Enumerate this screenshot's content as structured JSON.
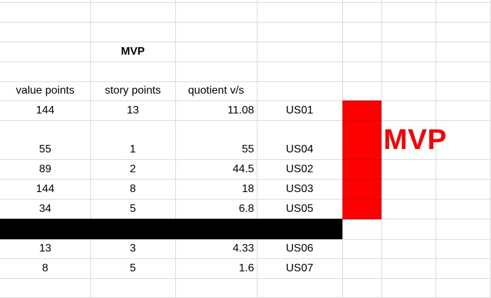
{
  "sheet": {
    "title_cell": "MVP",
    "headers": {
      "value": "value points",
      "story": "story points",
      "quotient": "quotient v/s"
    },
    "rows_top": [
      {
        "value": "144",
        "story": "13",
        "quotient": "11.08",
        "id": "US01"
      },
      {
        "value": "55",
        "story": "1",
        "quotient": "55",
        "id": "US04"
      },
      {
        "value": "89",
        "story": "2",
        "quotient": "44.5",
        "id": "US02"
      },
      {
        "value": "144",
        "story": "8",
        "quotient": "18",
        "id": "US03"
      },
      {
        "value": "34",
        "story": "5",
        "quotient": "6.8",
        "id": "US05"
      }
    ],
    "rows_bottom": [
      {
        "value": "13",
        "story": "3",
        "quotient": "4.33",
        "id": "US06"
      },
      {
        "value": "8",
        "story": "5",
        "quotient": "1.6",
        "id": "US07"
      }
    ],
    "mvp_label": "MVP",
    "colors": {
      "grid": "#d9d9d9",
      "marker": "#ff0000",
      "divider": "#000000"
    }
  }
}
